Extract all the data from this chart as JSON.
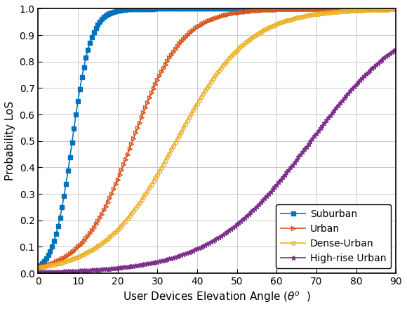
{
  "environments": [
    {
      "label": "Suburban",
      "a": 4.88,
      "b": 0.43,
      "color": "#0072BD",
      "marker": "s",
      "marker_size": 4,
      "markevery": 5,
      "filled": true
    },
    {
      "label": "Urban",
      "a": 9.61,
      "b": 0.16,
      "color": "#D95319",
      "marker": ">",
      "marker_size": 5,
      "markevery": 5,
      "filled": false
    },
    {
      "label": "Dense-Urban",
      "a": 12.08,
      "b": 0.11,
      "color": "#EDB120",
      "marker": "o",
      "marker_size": 4,
      "markevery": 5,
      "filled": false
    },
    {
      "label": "High-rise Urban",
      "a": 27.23,
      "b": 0.08,
      "color": "#7E2F8E",
      "marker": "*",
      "marker_size": 5,
      "markevery": 5,
      "filled": true
    }
  ],
  "xlabel": "User Devices Elevation Angle ($\\theta^o$  )",
  "ylabel": "Probability LoS",
  "xlim": [
    0,
    90
  ],
  "ylim": [
    0,
    1
  ],
  "xticks": [
    0,
    10,
    20,
    30,
    40,
    50,
    60,
    70,
    80,
    90
  ],
  "yticks": [
    0,
    0.1,
    0.2,
    0.3,
    0.4,
    0.5,
    0.6,
    0.7,
    0.8,
    0.9,
    1.0
  ],
  "legend_loc": "lower right",
  "background_color": "#ffffff",
  "figwidth": 5.8,
  "figheight": 4.4
}
